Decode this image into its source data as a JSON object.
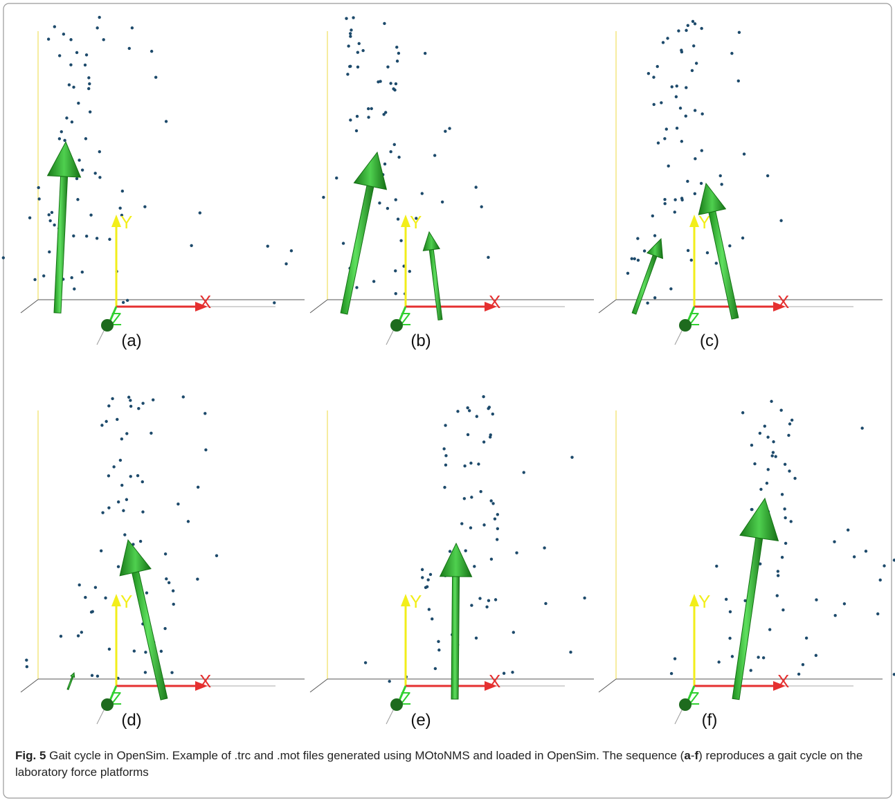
{
  "figure": {
    "panels": [
      {
        "label": "(a)",
        "axes": {
          "x": "X",
          "y": "Y",
          "z": "Z"
        }
      },
      {
        "label": "(b)",
        "axes": {
          "x": "X",
          "y": "Y",
          "z": "Z"
        }
      },
      {
        "label": "(c)",
        "axes": {
          "x": "X",
          "y": "Y",
          "z": "Z"
        }
      },
      {
        "label": "(d)",
        "axes": {
          "x": "X",
          "y": "Y",
          "z": "Z"
        }
      },
      {
        "label": "(e)",
        "axes": {
          "x": "X",
          "y": "Y",
          "z": "Z"
        }
      },
      {
        "label": "(f)",
        "axes": {
          "x": "X",
          "y": "Y",
          "z": "Z"
        }
      }
    ],
    "caption": {
      "label": "Fig. 5",
      "text": "Gait cycle in OpenSim. Example of .trc and .mot files generated using MOtoNMS and loaded in OpenSim. The sequence (",
      "start": "a",
      "dash": "-",
      "end": "f",
      "text_end": ") reproduces a gait cycle on the laboratory force platforms"
    }
  }
}
